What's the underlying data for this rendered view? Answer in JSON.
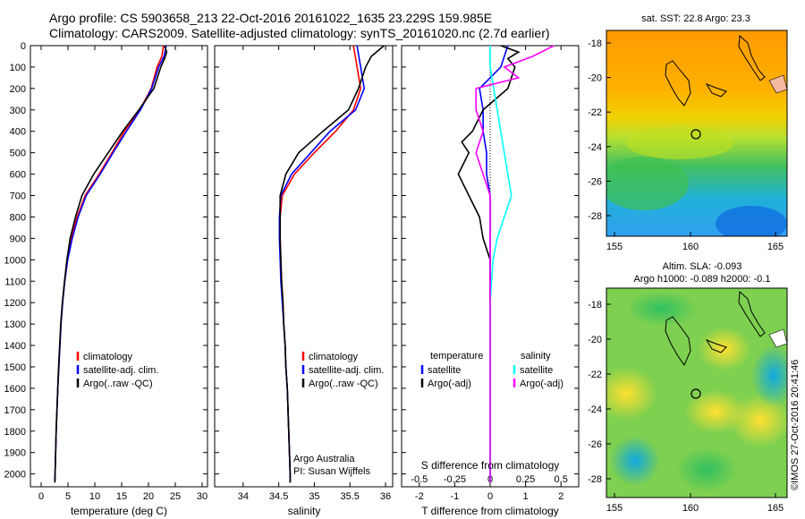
{
  "header": {
    "line1": "Argo profile: CS 5903658_213 22-Oct-2016 20161022_1635 23.229S 159.985E",
    "line2": "Climatology: CARS2009. Satellite-adjusted climatology: synTS_20161020.nc (2.7d earlier)"
  },
  "colors": {
    "climatology": "#ff0000",
    "satellite": "#0000ff",
    "argo": "#000000",
    "satellite_s": "#00ffff",
    "argo_s": "#ff00ff"
  },
  "credit": {
    "line1": "Argo Australia",
    "line2": "PI: Susan Wijffels",
    "timestamp": "©IMOS 27-Oct-2016 20:41:46"
  },
  "chart_data": [
    {
      "id": "temperature",
      "type": "line",
      "xlabel": "temperature (deg C)",
      "ylabel": "",
      "xlim": [
        -2,
        31
      ],
      "ylim": [
        2060,
        0
      ],
      "xticks": [
        0,
        5,
        10,
        15,
        20,
        25,
        30
      ],
      "yticks": [
        0,
        100,
        200,
        300,
        400,
        500,
        600,
        700,
        800,
        900,
        1000,
        1100,
        1200,
        1300,
        1400,
        1500,
        1600,
        1700,
        1800,
        1900,
        2000
      ],
      "legend": [
        "climatology",
        "satellite-adj. clim.",
        "Argo(..raw -QC)"
      ],
      "series": [
        {
          "name": "climatology",
          "color": "#ff0000",
          "points": [
            [
              22.8,
              0
            ],
            [
              22.5,
              50
            ],
            [
              21.6,
              100
            ],
            [
              20.5,
              200
            ],
            [
              18.4,
              300
            ],
            [
              15.5,
              400
            ],
            [
              13.2,
              500
            ],
            [
              10.8,
              600
            ],
            [
              8.2,
              700
            ],
            [
              6.7,
              800
            ],
            [
              5.6,
              900
            ],
            [
              4.9,
              1000
            ],
            [
              4.4,
              1100
            ],
            [
              4.0,
              1200
            ],
            [
              3.7,
              1300
            ],
            [
              3.5,
              1400
            ],
            [
              3.3,
              1500
            ],
            [
              3.1,
              1600
            ],
            [
              2.95,
              1700
            ],
            [
              2.8,
              1800
            ],
            [
              2.7,
              1900
            ],
            [
              2.6,
              2000
            ],
            [
              2.55,
              2040
            ]
          ]
        },
        {
          "name": "satellite-adj. clim.",
          "color": "#0000ff",
          "points": [
            [
              23.3,
              0
            ],
            [
              22.9,
              50
            ],
            [
              21.9,
              100
            ],
            [
              20.6,
              200
            ],
            [
              18.5,
              300
            ],
            [
              15.9,
              400
            ],
            [
              13.4,
              500
            ],
            [
              11.0,
              600
            ],
            [
              8.4,
              700
            ],
            [
              6.9,
              800
            ],
            [
              5.8,
              900
            ],
            [
              4.95,
              1000
            ],
            [
              4.4,
              1100
            ],
            [
              4.0,
              1200
            ],
            [
              3.7,
              1300
            ],
            [
              3.5,
              1400
            ],
            [
              3.3,
              1500
            ],
            [
              3.1,
              1600
            ],
            [
              2.95,
              1700
            ],
            [
              2.8,
              1800
            ],
            [
              2.7,
              1900
            ],
            [
              2.6,
              2000
            ],
            [
              2.55,
              2040
            ]
          ]
        },
        {
          "name": "Argo(..raw -QC)",
          "color": "#000000",
          "points": [
            [
              23.0,
              0
            ],
            [
              23.4,
              30
            ],
            [
              23.0,
              60
            ],
            [
              22.3,
              100
            ],
            [
              21.0,
              200
            ],
            [
              18.2,
              300
            ],
            [
              15.2,
              400
            ],
            [
              12.5,
              500
            ],
            [
              9.8,
              600
            ],
            [
              7.6,
              700
            ],
            [
              6.4,
              800
            ],
            [
              5.4,
              900
            ],
            [
              4.8,
              1000
            ],
            [
              4.35,
              1100
            ],
            [
              3.95,
              1200
            ],
            [
              3.65,
              1300
            ],
            [
              3.45,
              1400
            ],
            [
              3.25,
              1500
            ],
            [
              3.1,
              1600
            ],
            [
              2.95,
              1700
            ],
            [
              2.8,
              1800
            ],
            [
              2.7,
              1900
            ],
            [
              2.6,
              2000
            ],
            [
              2.55,
              2040
            ]
          ]
        }
      ]
    },
    {
      "id": "salinity",
      "type": "line",
      "xlabel": "salinity",
      "xlim": [
        33.6,
        36.1
      ],
      "ylim": [
        2060,
        0
      ],
      "xticks": [
        34,
        34.5,
        35,
        35.5,
        36
      ],
      "legend": [
        "climatology",
        "satellite-adj. clim.",
        "Argo(..raw -QC)"
      ],
      "series": [
        {
          "name": "climatology",
          "color": "#ff0000",
          "points": [
            [
              35.55,
              0
            ],
            [
              35.6,
              100
            ],
            [
              35.65,
              200
            ],
            [
              35.55,
              300
            ],
            [
              35.3,
              400
            ],
            [
              35.0,
              500
            ],
            [
              34.72,
              600
            ],
            [
              34.55,
              700
            ],
            [
              34.52,
              800
            ],
            [
              34.52,
              900
            ],
            [
              34.53,
              1000
            ],
            [
              34.54,
              1100
            ],
            [
              34.56,
              1200
            ],
            [
              34.57,
              1300
            ],
            [
              34.59,
              1400
            ],
            [
              34.6,
              1500
            ],
            [
              34.62,
              1600
            ],
            [
              34.63,
              1700
            ],
            [
              34.64,
              1800
            ],
            [
              34.65,
              1900
            ],
            [
              34.66,
              2000
            ],
            [
              34.66,
              2040
            ]
          ]
        },
        {
          "name": "satellite-adj. clim.",
          "color": "#0000ff",
          "points": [
            [
              35.6,
              0
            ],
            [
              35.65,
              100
            ],
            [
              35.7,
              200
            ],
            [
              35.58,
              300
            ],
            [
              35.22,
              400
            ],
            [
              34.95,
              500
            ],
            [
              34.68,
              600
            ],
            [
              34.53,
              700
            ],
            [
              34.51,
              800
            ],
            [
              34.51,
              900
            ],
            [
              34.52,
              1000
            ],
            [
              34.53,
              1100
            ],
            [
              34.55,
              1200
            ],
            [
              34.57,
              1300
            ],
            [
              34.59,
              1400
            ],
            [
              34.6,
              1500
            ],
            [
              34.62,
              1600
            ],
            [
              34.63,
              1700
            ],
            [
              34.64,
              1800
            ],
            [
              34.65,
              1900
            ],
            [
              34.66,
              2000
            ],
            [
              34.66,
              2040
            ]
          ]
        },
        {
          "name": "Argo(..raw -QC)",
          "color": "#000000",
          "points": [
            [
              35.98,
              0
            ],
            [
              35.8,
              50
            ],
            [
              35.72,
              100
            ],
            [
              35.62,
              200
            ],
            [
              35.48,
              300
            ],
            [
              35.12,
              400
            ],
            [
              34.78,
              500
            ],
            [
              34.6,
              600
            ],
            [
              34.52,
              700
            ],
            [
              34.52,
              800
            ],
            [
              34.52,
              900
            ],
            [
              34.53,
              1000
            ],
            [
              34.54,
              1100
            ],
            [
              34.56,
              1200
            ],
            [
              34.57,
              1300
            ],
            [
              34.59,
              1400
            ],
            [
              34.6,
              1500
            ],
            [
              34.62,
              1600
            ],
            [
              34.63,
              1700
            ],
            [
              34.64,
              1800
            ],
            [
              34.65,
              1900
            ],
            [
              34.66,
              2000
            ],
            [
              34.66,
              2040
            ]
          ]
        }
      ]
    },
    {
      "id": "difference",
      "type": "line",
      "xlabel_bottom": "T difference from climatology",
      "xlabel_top": "S difference from climatology",
      "xlim": [
        -2.5,
        2.5
      ],
      "ylim": [
        2060,
        0
      ],
      "xticks_T": [
        -2,
        -1,
        0,
        1,
        2
      ],
      "xticks_S": [
        -0.5,
        -0.25,
        0,
        0.25,
        0.5
      ],
      "legend_t_title": "temperature",
      "legend_s_title": "salinity",
      "legend_t": [
        "satellite",
        "Argo(-adj)"
      ],
      "legend_s": [
        "satellite",
        "Argo(-adj)"
      ],
      "series": [
        {
          "name": "T satellite",
          "color": "#0000ff",
          "points": [
            [
              0.5,
              0
            ],
            [
              0.4,
              50
            ],
            [
              0.3,
              100
            ],
            [
              -0.3,
              200
            ],
            [
              -0.2,
              300
            ],
            [
              -0.2,
              400
            ],
            [
              -0.1,
              500
            ],
            [
              -0.1,
              600
            ],
            [
              0.0,
              700
            ],
            [
              0.0,
              800
            ],
            [
              0.0,
              900
            ],
            [
              0.0,
              1000
            ],
            [
              0.0,
              1100
            ],
            [
              0.0,
              1200
            ],
            [
              0.0,
              1400
            ],
            [
              0.0,
              2040
            ]
          ]
        },
        {
          "name": "T Argo(-adj)",
          "color": "#000000",
          "points": [
            [
              0.3,
              0
            ],
            [
              0.8,
              30
            ],
            [
              0.5,
              60
            ],
            [
              0.7,
              100
            ],
            [
              0.5,
              200
            ],
            [
              -0.2,
              300
            ],
            [
              -0.5,
              400
            ],
            [
              -0.8,
              450
            ],
            [
              -0.6,
              500
            ],
            [
              -0.9,
              600
            ],
            [
              -0.6,
              700
            ],
            [
              -0.3,
              800
            ],
            [
              -0.2,
              900
            ],
            [
              0.0,
              1000
            ],
            [
              0.0,
              1100
            ],
            [
              0.0,
              1200
            ],
            [
              0.0,
              1400
            ],
            [
              0.0,
              2040
            ]
          ]
        },
        {
          "name": "S satellite",
          "color": "#00ffff",
          "points": [
            [
              0.0,
              0
            ],
            [
              0.0,
              100
            ],
            [
              0.05,
              300
            ],
            [
              0.1,
              500
            ],
            [
              0.15,
              700
            ],
            [
              0.1,
              800
            ],
            [
              0.05,
              900
            ],
            [
              0.02,
              1000
            ],
            [
              0.0,
              1200
            ],
            [
              0.0,
              2040
            ]
          ]
        },
        {
          "name": "S Argo(-adj)",
          "color": "#ff00ff",
          "points": [
            [
              0.45,
              0
            ],
            [
              0.3,
              50
            ],
            [
              0.1,
              100
            ],
            [
              0.2,
              150
            ],
            [
              -0.1,
              200
            ],
            [
              -0.1,
              300
            ],
            [
              -0.05,
              400
            ],
            [
              -0.1,
              500
            ],
            [
              -0.05,
              600
            ],
            [
              0.0,
              700
            ],
            [
              0.0,
              800
            ],
            [
              0.0,
              900
            ],
            [
              0.0,
              1000
            ],
            [
              0.0,
              2040
            ]
          ]
        }
      ]
    }
  ],
  "maps": {
    "sst": {
      "title": "sat. SST: 22.8  Argo: 23.3",
      "yticks": [
        "-18",
        "-20",
        "-22",
        "-24",
        "-26",
        "-28"
      ],
      "xticks": [
        "155",
        "160",
        "165"
      ]
    },
    "sla": {
      "title1": "Altim. SLA: -0.093",
      "title2": "Argo h1000: -0.089 h2000: -0.1",
      "yticks": [
        "-18",
        "-20",
        "-22",
        "-24",
        "-26",
        "-28"
      ],
      "xticks": [
        "155",
        "160",
        "165"
      ]
    }
  }
}
